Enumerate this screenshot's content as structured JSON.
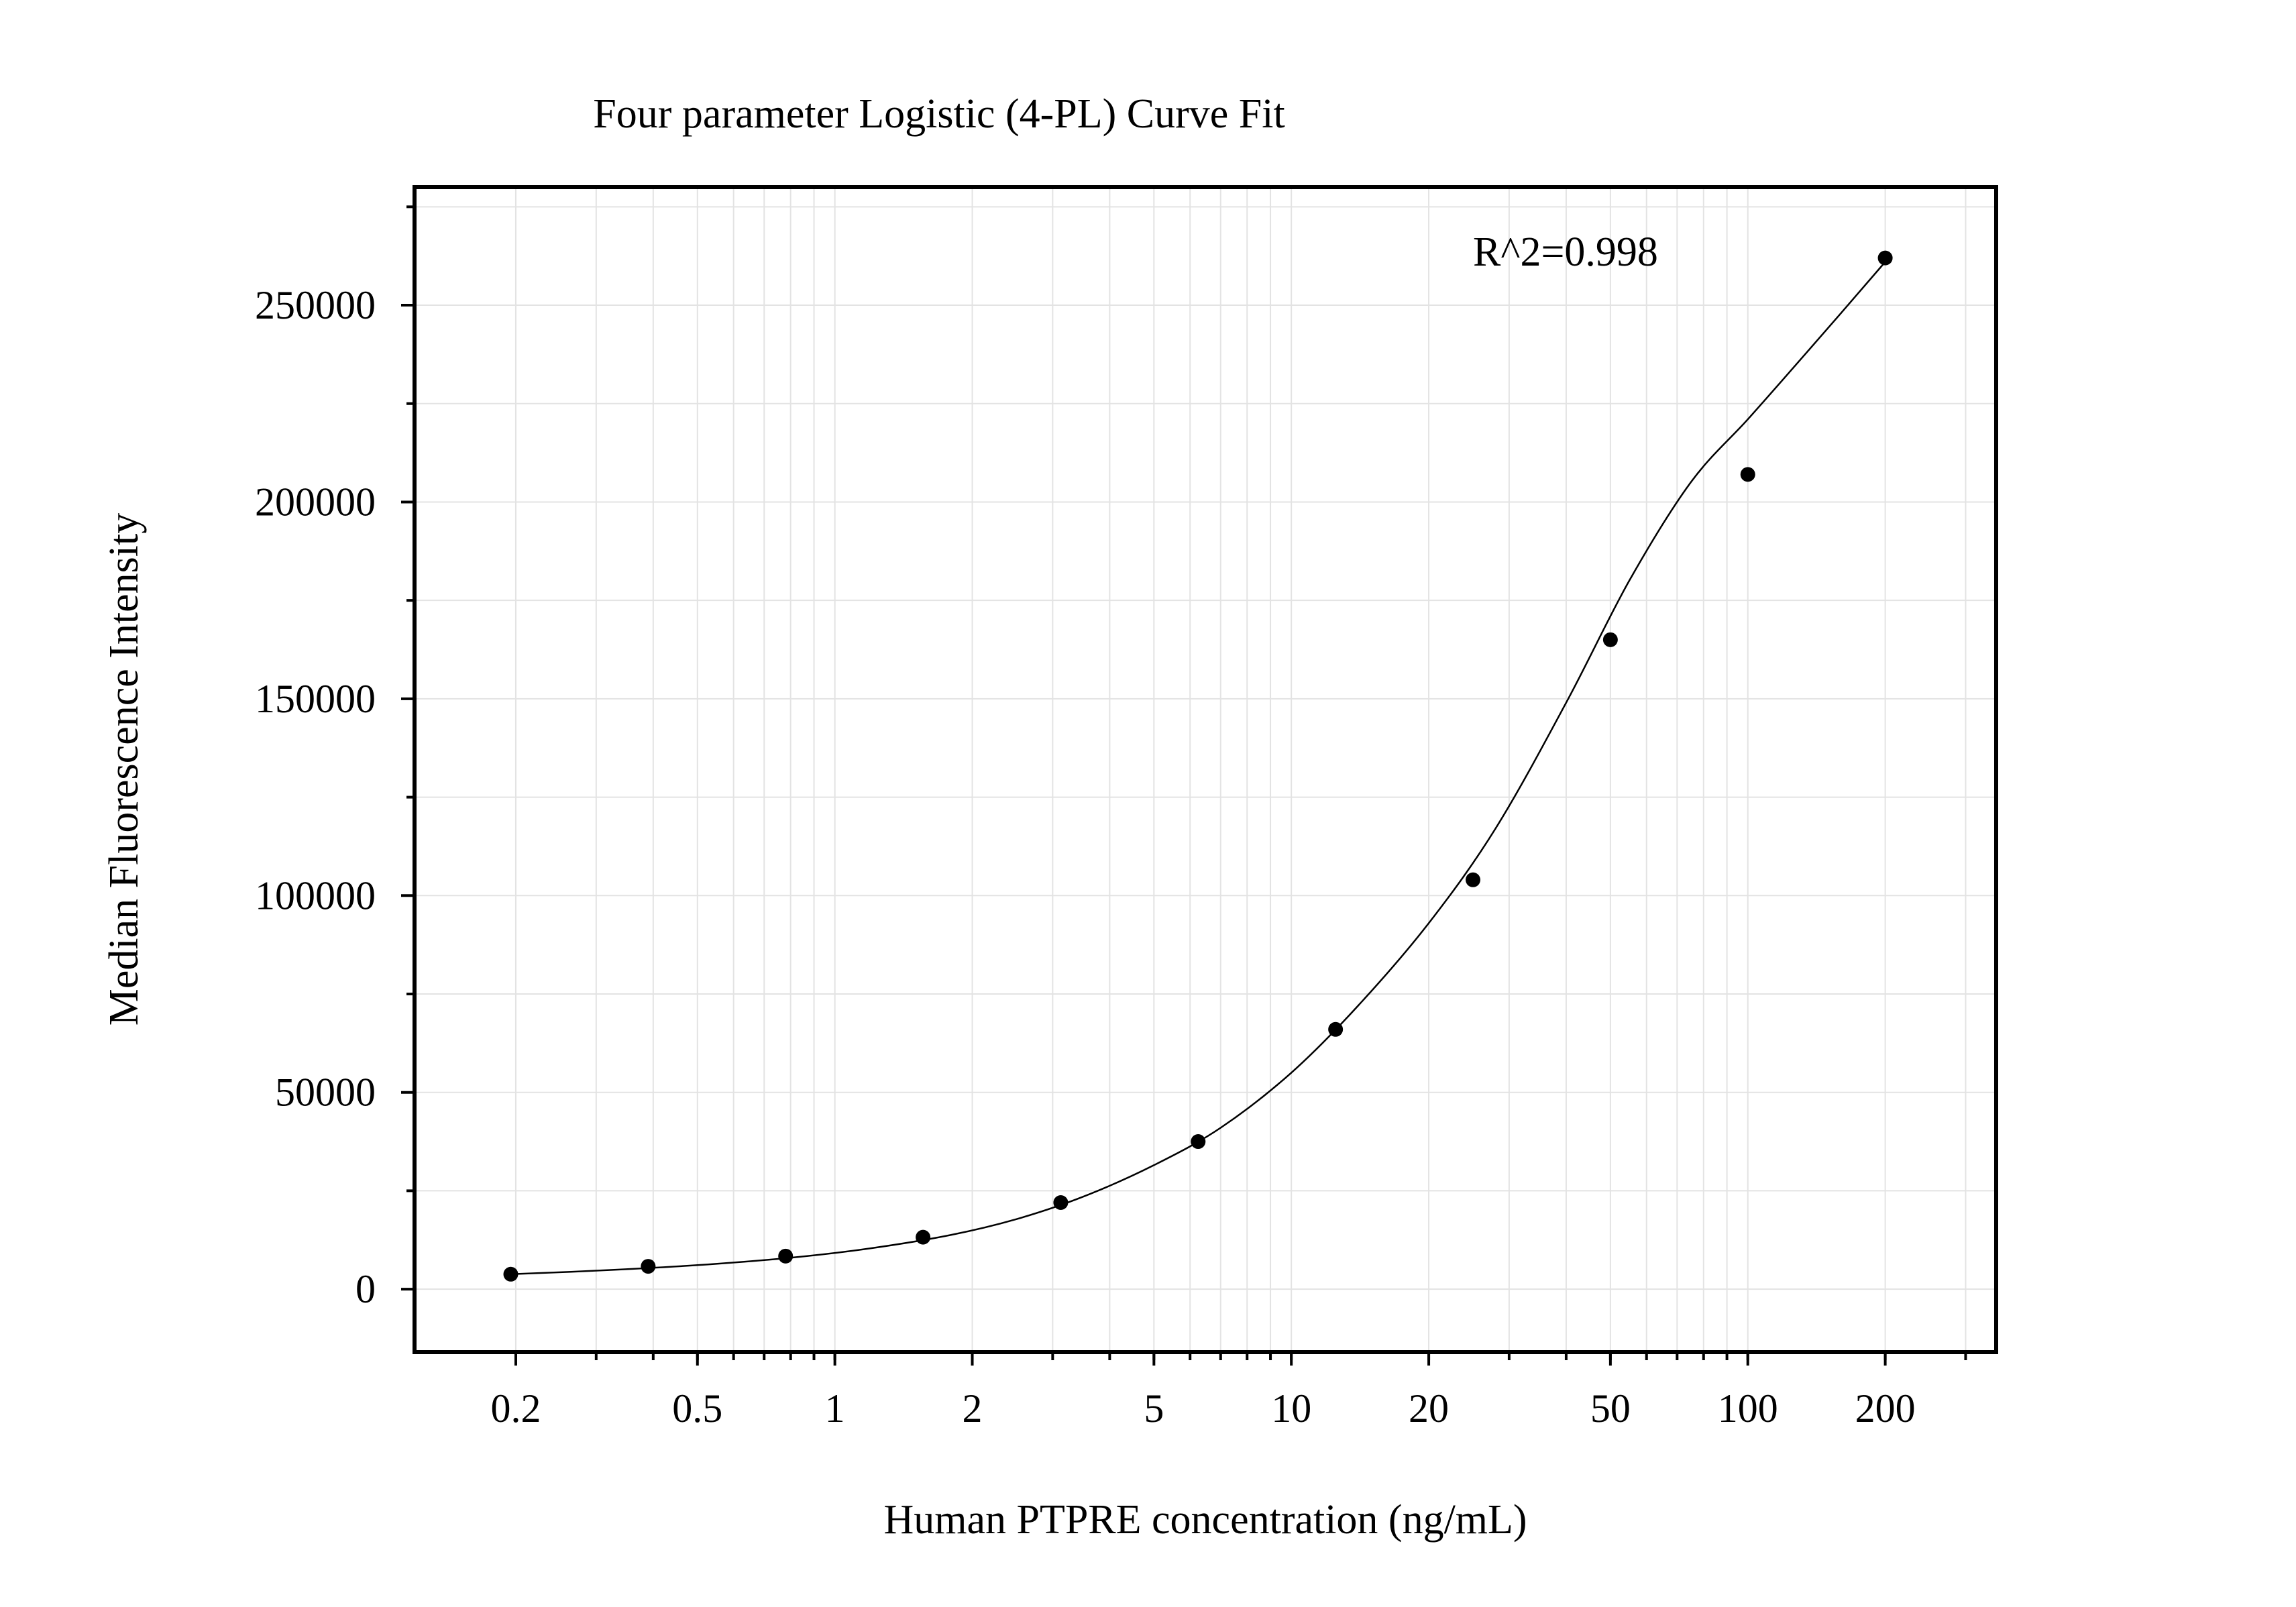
{
  "chart_data": {
    "type": "scatter",
    "title": "Four parameter Logistic (4-PL) Curve Fit",
    "xlabel": "Human PTPRE concentration (ng/mL)",
    "ylabel": "Median Fluorescence Intensity",
    "x_scale": "log",
    "xlim": [
      0.12,
      350
    ],
    "ylim": [
      -16000,
      280000
    ],
    "x_ticks": [
      0.2,
      0.5,
      1,
      2,
      5,
      10,
      20,
      50,
      100,
      200
    ],
    "x_tick_labels": [
      "0.2",
      "0.5",
      "1",
      "2",
      "5",
      "10",
      "20",
      "50",
      "100",
      "200"
    ],
    "y_ticks": [
      0,
      50000,
      100000,
      150000,
      200000,
      250000
    ],
    "y_tick_labels": [
      "0",
      "50000",
      "100000",
      "150000",
      "200000",
      "250000"
    ],
    "grid": true,
    "annotation": "R^2=0.998",
    "points": {
      "x": [
        0.195,
        0.39,
        0.78,
        1.56,
        3.125,
        6.25,
        12.5,
        25,
        50,
        100,
        200
      ],
      "y": [
        3800,
        5800,
        8400,
        13200,
        22000,
        37500,
        66000,
        104000,
        165000,
        207000,
        262000
      ]
    },
    "fit": {
      "model": "4-PL",
      "x": [
        0.195,
        0.3,
        0.5,
        0.8,
        1.2,
        1.8,
        2.5,
        3.5,
        5,
        7,
        10,
        14,
        20,
        28,
        40,
        55,
        75,
        100,
        130,
        160,
        200
      ],
      "y": [
        3800,
        4700,
        6100,
        8000,
        10400,
        13800,
        17800,
        23500,
        31500,
        41000,
        55000,
        72000,
        93000,
        117000,
        149000,
        180000,
        205000,
        221000,
        236000,
        248000,
        261000
      ]
    },
    "colors": {
      "points": "#000000",
      "line": "#000000",
      "grid": "#e3e3e3",
      "frame": "#000000"
    }
  }
}
